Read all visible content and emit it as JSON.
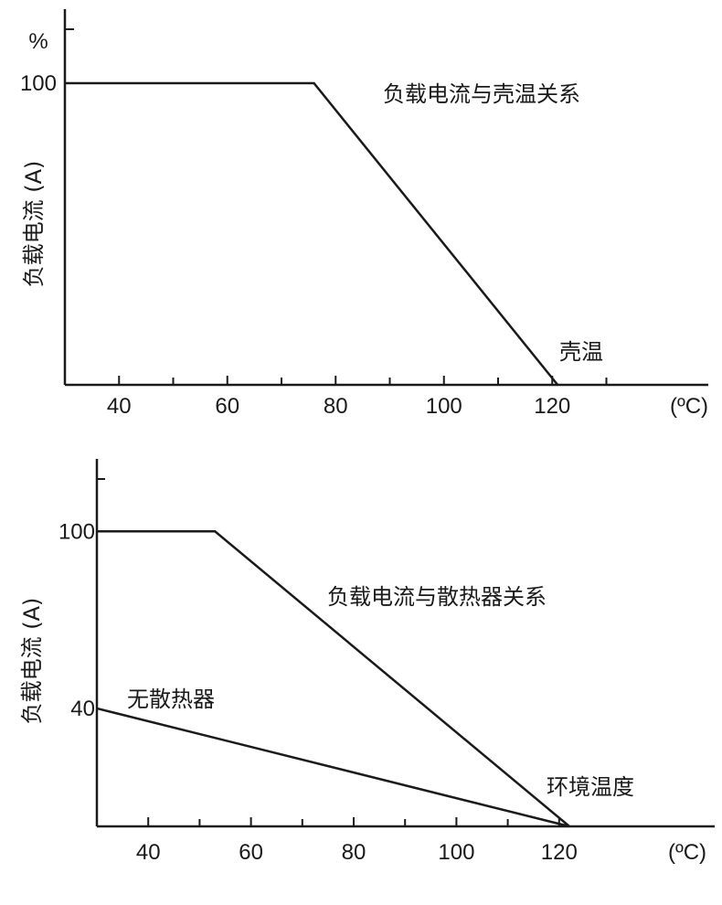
{
  "chart_data": [
    {
      "type": "line",
      "ylabel": "负载电流 (A)",
      "y_unit": "%",
      "x_unit": "(ºC)",
      "x_ticks": [
        40,
        60,
        80,
        100,
        120
      ],
      "x_minor_ticks": [
        50,
        70,
        90,
        110,
        130
      ],
      "y_ticks": [
        100
      ],
      "xlim": [
        30,
        132
      ],
      "ylim": [
        0,
        120
      ],
      "title_annotation": "负载电流与壳温关系",
      "x_annotation": "壳温",
      "series": [
        {
          "x": [
            30,
            76,
            121
          ],
          "y": [
            100,
            100,
            0
          ]
        }
      ]
    },
    {
      "type": "line",
      "ylabel": "负载电流 (A)",
      "x_unit": "(ºC)",
      "x_ticks": [
        40,
        60,
        80,
        100,
        120
      ],
      "x_minor_ticks": [
        50,
        70,
        90,
        110
      ],
      "y_ticks": [
        100,
        40
      ],
      "xlim": [
        30,
        132
      ],
      "ylim": [
        0,
        120
      ],
      "title_annotation": "负载电流与散热器关系",
      "x_annotation": "环境温度",
      "series": [
        {
          "x": [
            30,
            53,
            122
          ],
          "y": [
            100,
            100,
            0
          ]
        },
        {
          "name": "无散热器",
          "x": [
            30,
            122
          ],
          "y": [
            40,
            0
          ]
        }
      ]
    }
  ]
}
